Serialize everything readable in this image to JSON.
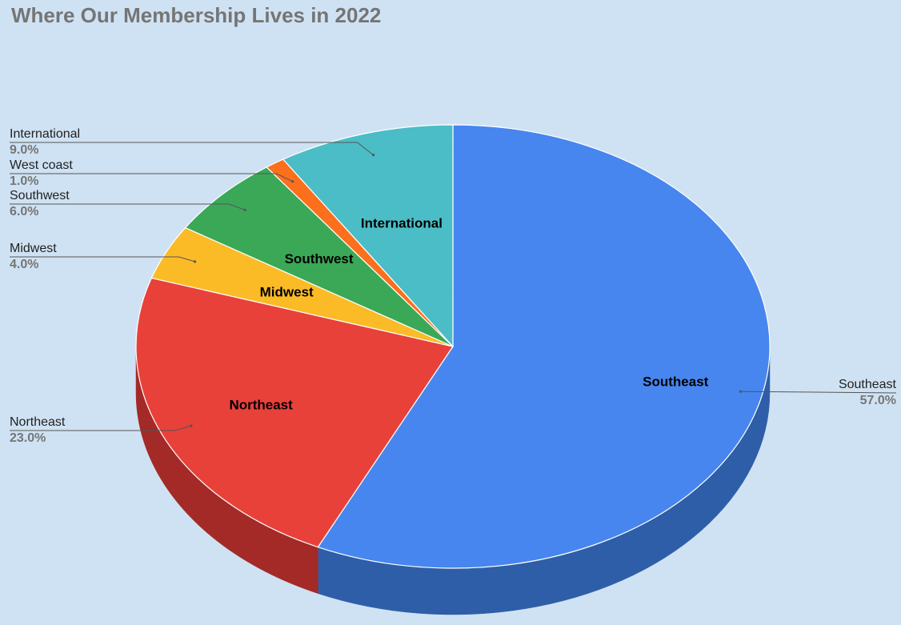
{
  "chart_data": {
    "type": "pie",
    "title": "Where Our Membership Lives in 2022",
    "style": "3d",
    "slices": [
      {
        "name": "Southeast",
        "value": 57.0,
        "pct_label": "57.0%",
        "color": "#4786ee",
        "side_color": "#2f5ea8"
      },
      {
        "name": "Northeast",
        "value": 23.0,
        "pct_label": "23.0%",
        "color": "#e8413a",
        "side_color": "#a32a26"
      },
      {
        "name": "Midwest",
        "value": 4.0,
        "pct_label": "4.0%",
        "color": "#fbbb27",
        "side_color": "#b88a1d"
      },
      {
        "name": "Southwest",
        "value": 6.0,
        "pct_label": "6.0%",
        "color": "#3ba857",
        "side_color": "#2a7a3e"
      },
      {
        "name": "West coast",
        "value": 1.0,
        "pct_label": "1.0%",
        "color": "#fc6f1d",
        "side_color": "#b84f13"
      },
      {
        "name": "International",
        "value": 9.0,
        "pct_label": "9.0%",
        "color": "#4bbdc6",
        "side_color": "#358a90"
      }
    ]
  },
  "colors": {
    "background": "#cfe2f3",
    "title": "#757575",
    "leader_line": "#555555"
  }
}
